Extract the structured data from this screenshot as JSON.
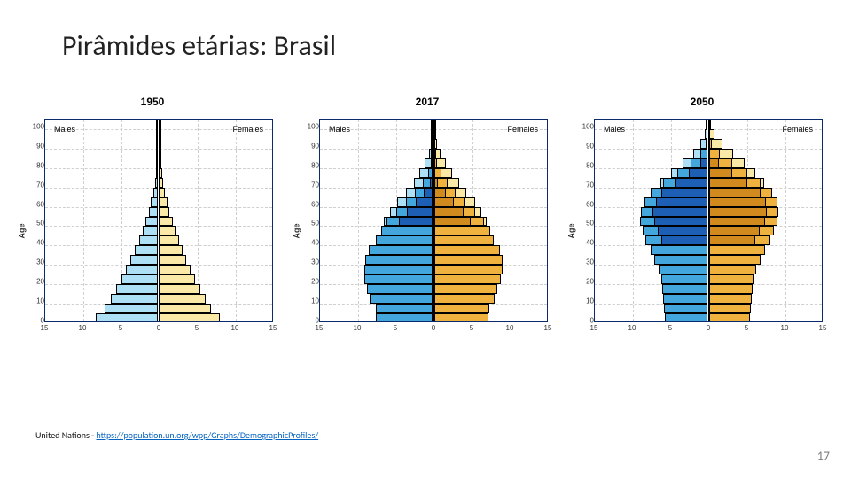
{
  "page": {
    "title": "Pirâmides etárias: Brasil",
    "source_prefix": "United Nations - ",
    "source_url_text": "https://population.un.org/wpp/Graphs/DemographicProfiles/",
    "page_number": "17",
    "background_color": "#ffffff"
  },
  "shared": {
    "y_axis_label": "Age",
    "y_min": 0,
    "y_max": 105,
    "y_tick_step": 10,
    "x_label_left": "Males",
    "x_label_right": "Females",
    "x_min": -15,
    "x_max": 15,
    "x_ticks": [
      -15,
      -10,
      -5,
      0,
      5,
      10,
      15
    ],
    "x_tick_labels": [
      "15",
      "10",
      "5",
      "0",
      "5",
      "10",
      "15"
    ],
    "frame_color": "#0a2a6b",
    "grid_color": "#cfcfcf",
    "bar_border": "#000000",
    "title_fontsize_pt": 12,
    "tick_fontsize_pt": 8,
    "label_fontsize_pt": 9,
    "age_bin_width": 5,
    "age_bins_start": [
      0,
      5,
      10,
      15,
      20,
      25,
      30,
      35,
      40,
      45,
      50,
      55,
      60,
      65,
      70,
      75,
      80,
      85,
      90,
      95,
      100
    ]
  },
  "colors": {
    "male_base": "#aee0f5",
    "male_mid": "#43a7de",
    "male_dark": "#1c5fb5",
    "female_base": "#fbe9a8",
    "female_mid": "#f0b23f",
    "female_dark": "#d18a1d"
  },
  "charts": [
    {
      "title": "1950",
      "male": {
        "base": [
          8.1,
          7.0,
          6.2,
          5.5,
          4.8,
          4.2,
          3.6,
          3.0,
          2.5,
          2.0,
          1.6,
          1.2,
          0.9,
          0.6,
          0.4,
          0.25,
          0.15,
          0.07,
          0.03,
          0.01,
          0.005
        ],
        "mid": [
          0,
          0,
          0,
          0,
          0,
          0,
          0,
          0,
          0,
          0,
          0,
          0,
          0,
          0,
          0,
          0,
          0,
          0,
          0,
          0,
          0
        ],
        "dark": [
          0,
          0,
          0,
          0,
          0,
          0,
          0,
          0,
          0,
          0,
          0,
          0,
          0,
          0,
          0,
          0,
          0,
          0,
          0,
          0,
          0
        ]
      },
      "female": {
        "base": [
          7.9,
          6.8,
          6.0,
          5.4,
          4.7,
          4.1,
          3.5,
          3.0,
          2.5,
          2.1,
          1.7,
          1.3,
          1.0,
          0.7,
          0.5,
          0.3,
          0.18,
          0.09,
          0.04,
          0.015,
          0.006
        ],
        "mid": [
          0,
          0,
          0,
          0,
          0,
          0,
          0,
          0,
          0,
          0,
          0,
          0,
          0,
          0,
          0,
          0,
          0,
          0,
          0,
          0,
          0
        ],
        "dark": [
          0,
          0,
          0,
          0,
          0,
          0,
          0,
          0,
          0,
          0,
          0,
          0,
          0,
          0,
          0,
          0,
          0,
          0,
          0,
          0,
          0
        ]
      }
    },
    {
      "title": "2017",
      "male": {
        "base": [
          7.4,
          7.5,
          8.2,
          8.6,
          8.9,
          9.0,
          8.8,
          8.4,
          7.4,
          6.8,
          6.4,
          5.6,
          4.6,
          3.5,
          2.5,
          1.7,
          1.0,
          0.5,
          0.2,
          0.06,
          0.02
        ],
        "mid": [
          7.4,
          7.5,
          8.2,
          8.6,
          8.9,
          9.0,
          8.8,
          8.4,
          7.4,
          6.8,
          6.0,
          4.8,
          3.5,
          2.3,
          1.3,
          0.6,
          0.2,
          0.05,
          0,
          0,
          0
        ],
        "dark": [
          0,
          0,
          0,
          0,
          0,
          0,
          0,
          0,
          0,
          0,
          4.4,
          3.4,
          2.2,
          1.2,
          0.35,
          0,
          0,
          0,
          0,
          0,
          0
        ]
      },
      "female": {
        "base": [
          7.1,
          7.2,
          7.9,
          8.3,
          8.7,
          8.9,
          8.9,
          8.6,
          7.8,
          7.3,
          6.9,
          6.2,
          5.3,
          4.2,
          3.2,
          2.3,
          1.5,
          0.8,
          0.35,
          0.12,
          0.04
        ],
        "mid": [
          7.1,
          7.2,
          7.9,
          8.3,
          8.7,
          8.9,
          8.9,
          8.6,
          7.8,
          7.3,
          6.5,
          5.3,
          4.0,
          2.8,
          1.7,
          0.9,
          0.35,
          0.1,
          0,
          0,
          0
        ],
        "dark": [
          0,
          0,
          0,
          0,
          0,
          0,
          0,
          0,
          0,
          0,
          4.8,
          3.8,
          2.6,
          1.5,
          0.5,
          0,
          0,
          0,
          0,
          0,
          0
        ]
      }
    },
    {
      "title": "2050",
      "male": {
        "base": [
          5.6,
          5.7,
          5.8,
          5.9,
          6.1,
          6.4,
          7.0,
          7.4,
          8.1,
          8.5,
          8.8,
          8.7,
          8.3,
          7.5,
          6.2,
          4.8,
          3.3,
          1.9,
          0.9,
          0.3,
          0.08
        ],
        "mid": [
          5.6,
          5.7,
          5.8,
          5.9,
          6.1,
          6.4,
          7.0,
          7.4,
          8.1,
          8.5,
          8.8,
          8.7,
          8.3,
          7.4,
          5.8,
          4.0,
          2.2,
          0.9,
          0.2,
          0,
          0
        ],
        "dark": [
          0,
          0,
          0,
          0,
          0,
          0,
          0,
          0,
          6.0,
          6.5,
          7.0,
          7.2,
          6.8,
          6.0,
          4.2,
          2.4,
          0.9,
          0,
          0,
          0,
          0
        ]
      },
      "female": {
        "base": [
          5.4,
          5.5,
          5.6,
          5.7,
          5.9,
          6.2,
          6.8,
          7.3,
          8.0,
          8.5,
          9.0,
          9.1,
          8.9,
          8.3,
          7.2,
          6.0,
          4.6,
          3.1,
          1.7,
          0.7,
          0.2
        ],
        "mid": [
          5.4,
          5.5,
          5.6,
          5.7,
          5.9,
          6.2,
          6.8,
          7.3,
          8.0,
          8.5,
          9.0,
          9.1,
          8.9,
          8.2,
          6.8,
          5.0,
          3.0,
          1.4,
          0.4,
          0,
          0
        ],
        "dark": [
          0,
          0,
          0,
          0,
          0,
          0,
          0,
          0,
          6.0,
          6.6,
          7.3,
          7.6,
          7.4,
          6.7,
          5.0,
          3.0,
          1.3,
          0,
          0,
          0,
          0
        ]
      }
    }
  ]
}
